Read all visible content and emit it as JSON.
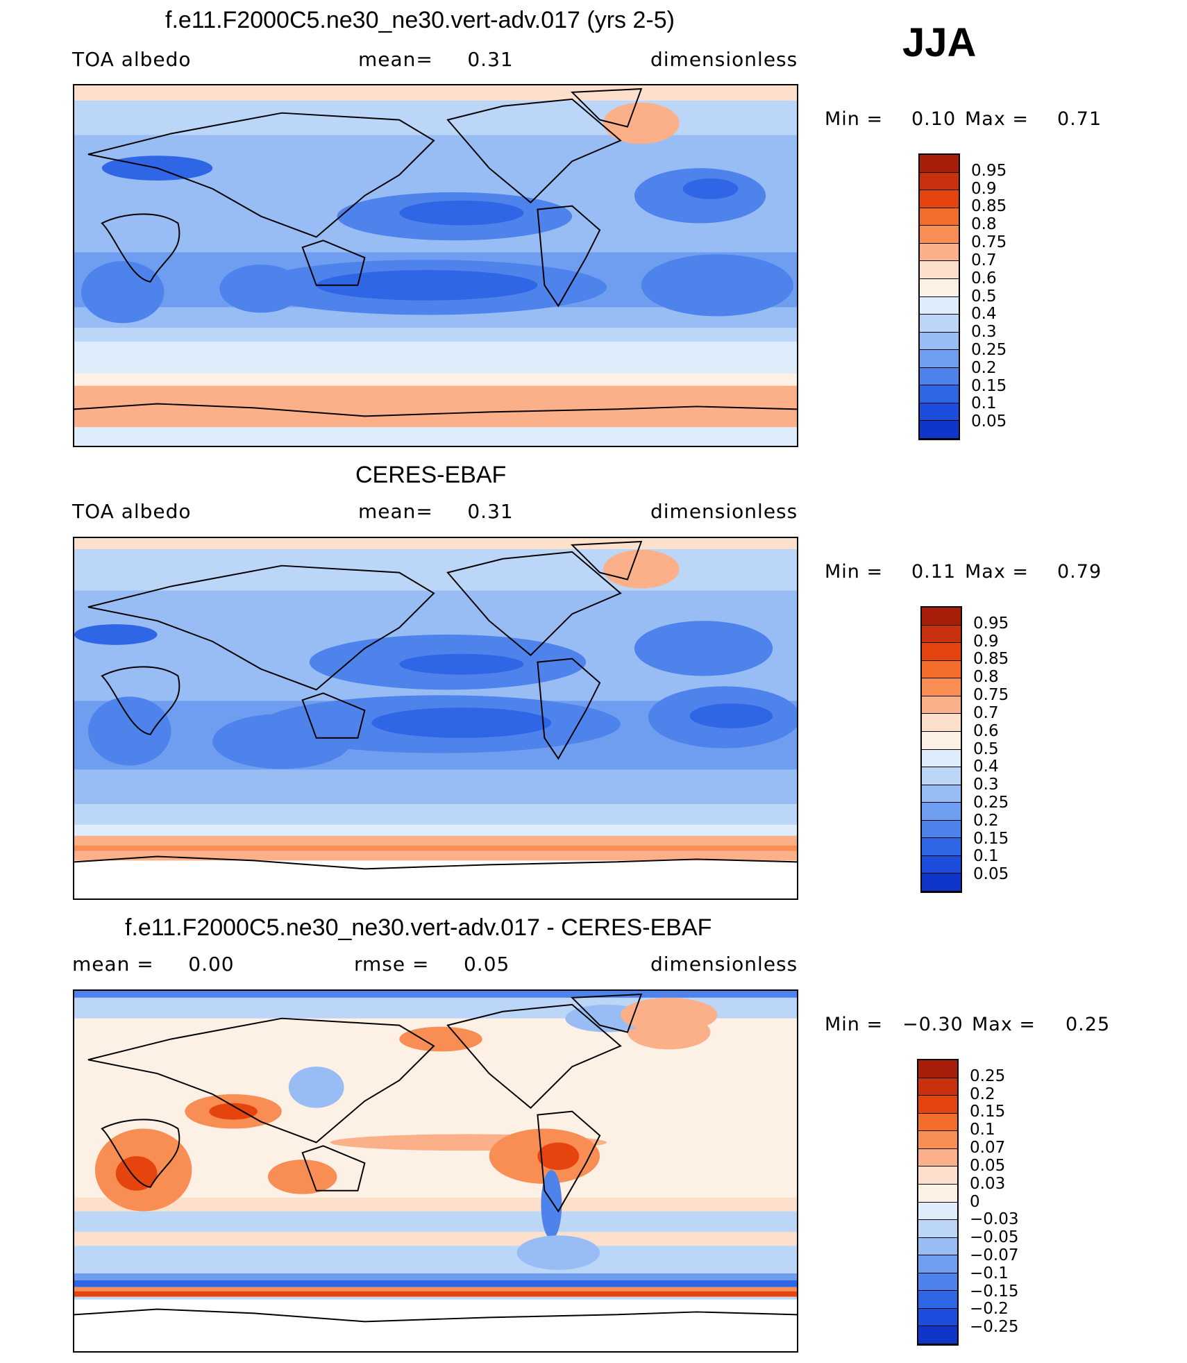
{
  "season": "JJA",
  "panels": [
    {
      "title": "f.e11.F2000C5.ne30_ne30.vert-adv.017 (yrs 2-5)",
      "left_label": "TOA albedo",
      "center_label": "mean=     0.31",
      "right_label": "dimensionless",
      "minmax": {
        "min_label": "Min =",
        "min_value": "0.10",
        "max_label": "Max =",
        "max_value": "0.71"
      },
      "colorbar": {
        "labels": [
          "0.95",
          "0.9",
          "0.85",
          "0.8",
          "0.75",
          "0.7",
          "0.6",
          "0.5",
          "0.4",
          "0.3",
          "0.25",
          "0.2",
          "0.15",
          "0.1",
          "0.05"
        ],
        "colors": [
          "#800000",
          "#a81e0a",
          "#c9300e",
          "#e6440e",
          "#f56d2a",
          "#f98e55",
          "#fbb089",
          "#fde0cc",
          "#fdf0e4",
          "#deecfb",
          "#bcd6f8",
          "#98bdf5",
          "#6f9ef0",
          "#4f83ec",
          "#2f66e6",
          "#1d4ddc",
          "#0f36c8",
          "#0a1f9e"
        ]
      }
    },
    {
      "title": "CERES-EBAF",
      "left_label": "TOA albedo",
      "center_label": "mean=     0.31",
      "right_label": "dimensionless",
      "minmax": {
        "min_label": "Min =",
        "min_value": "0.11",
        "max_label": "Max =",
        "max_value": "0.79"
      },
      "colorbar": {
        "labels": [
          "0.95",
          "0.9",
          "0.85",
          "0.8",
          "0.75",
          "0.7",
          "0.6",
          "0.5",
          "0.4",
          "0.3",
          "0.25",
          "0.2",
          "0.15",
          "0.1",
          "0.05"
        ],
        "colors": [
          "#800000",
          "#a81e0a",
          "#c9300e",
          "#e6440e",
          "#f56d2a",
          "#f98e55",
          "#fbb089",
          "#fde0cc",
          "#fdf0e4",
          "#deecfb",
          "#bcd6f8",
          "#98bdf5",
          "#6f9ef0",
          "#4f83ec",
          "#2f66e6",
          "#1d4ddc",
          "#0f36c8",
          "#0a1f9e"
        ]
      }
    },
    {
      "title": "f.e11.F2000C5.ne30_ne30.vert-adv.017 - CERES-EBAF",
      "left_label": "mean =     0.00",
      "center_label": "rmse =     0.05",
      "right_label": "dimensionless",
      "minmax": {
        "min_label": "Min =",
        "min_value": "−0.30",
        "max_label": "Max =",
        "max_value": "0.25"
      },
      "colorbar": {
        "labels": [
          "0.25",
          "0.2",
          "0.15",
          "0.1",
          "0.07",
          "0.05",
          "0.03",
          "0",
          "−0.03",
          "−0.05",
          "−0.07",
          "−0.1",
          "−0.15",
          "−0.2",
          "−0.25"
        ],
        "colors": [
          "#800000",
          "#a81e0a",
          "#c9300e",
          "#e6440e",
          "#f56d2a",
          "#f98e55",
          "#fbb089",
          "#fde0cc",
          "#fdf0e4",
          "#deecfb",
          "#bcd6f8",
          "#98bdf5",
          "#6f9ef0",
          "#4f83ec",
          "#2f66e6",
          "#1d4ddc",
          "#0f36c8",
          "#0a1f9e"
        ]
      }
    }
  ]
}
